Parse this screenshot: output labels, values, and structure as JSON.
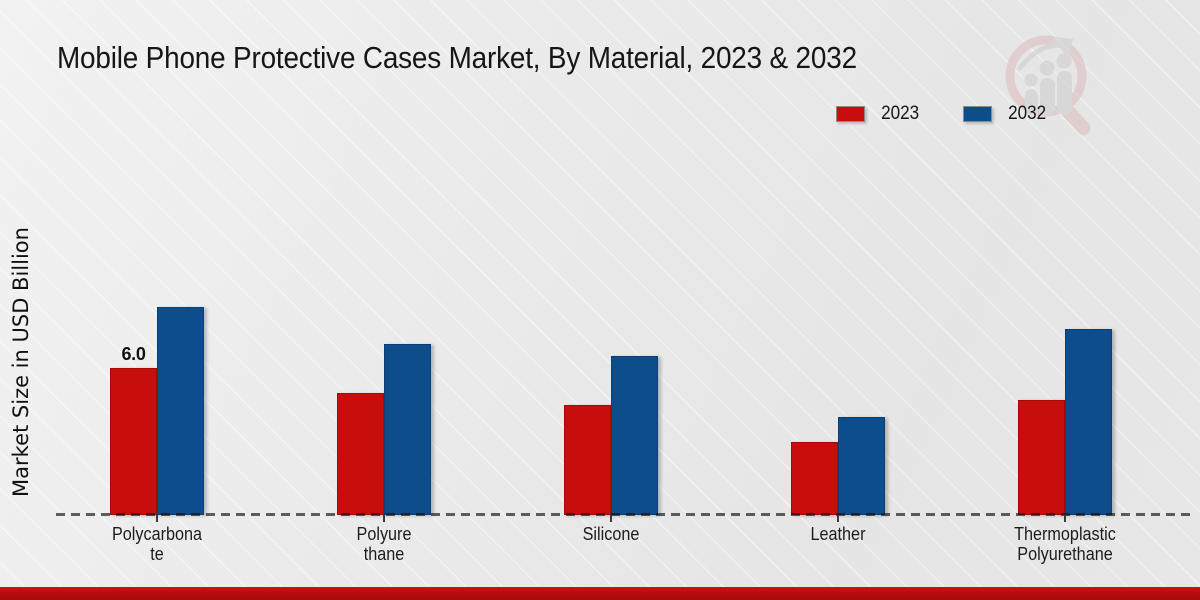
{
  "title": "Mobile Phone Protective Cases Market, By Material, 2023 & 2032",
  "y_axis_label": "Market Size in USD Billion",
  "legend": {
    "items": [
      {
        "label": "2023",
        "color": "#c80d0d"
      },
      {
        "label": "2032",
        "color": "#0e4d8b"
      }
    ]
  },
  "watermark": {
    "icon": "magnifier-growth-chart-logo"
  },
  "annotation": {
    "text": "6.0"
  },
  "footer": {
    "strip_color": "#b60d0d"
  },
  "chart_data": {
    "type": "bar",
    "title": "Mobile Phone Protective Cases Market, By Material, 2023 & 2032",
    "xlabel": "",
    "ylabel": "Market Size in USD Billion",
    "categories": [
      "Polycarbonate",
      "Polyurethane",
      "Silicone",
      "Leather",
      "Thermoplastic Polyurethane"
    ],
    "category_label_lines": [
      [
        "Polycarbona",
        "te"
      ],
      [
        "Polyure",
        "thane"
      ],
      [
        "Silicone"
      ],
      [
        "Leather"
      ],
      [
        "Thermoplastic",
        "Polyurethane"
      ]
    ],
    "series": [
      {
        "name": "2023",
        "color": "#c80d0d",
        "values": [
          6.0,
          5.0,
          4.5,
          3.0,
          4.7
        ]
      },
      {
        "name": "2032",
        "color": "#0e4d8b",
        "values": [
          8.5,
          7.0,
          6.5,
          4.0,
          7.6
        ]
      }
    ],
    "data_labels": [
      {
        "series": "2023",
        "category": "Polycarbonate",
        "text": "6.0"
      }
    ],
    "ylim": [
      0,
      9.5
    ],
    "y_axis_ticks_visible": false,
    "grid": false,
    "baseline_style": "dashed",
    "legend_position": "top-right"
  }
}
